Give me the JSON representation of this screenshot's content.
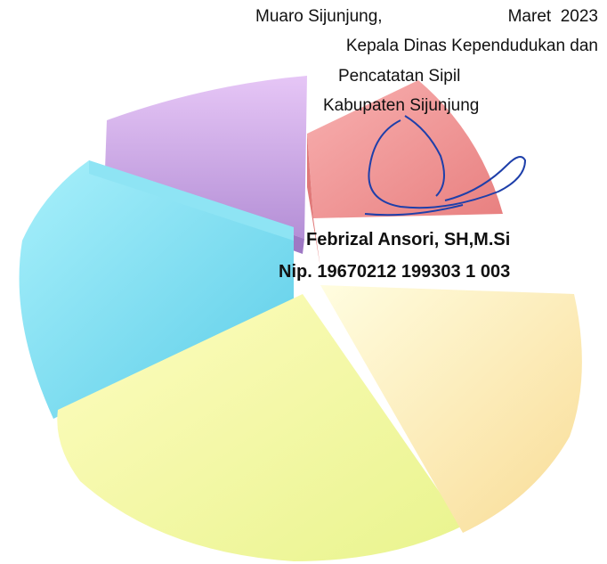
{
  "signature_block": {
    "place": "Muaro Sijunjung,",
    "date": "Maret  2023",
    "position_line1": "Kepala Dinas Kependudukan dan",
    "position_line2": "Pencatatan Sipil",
    "position_line3": "Kabupaten Sijunjung",
    "name": "Febrizal Ansori, SH,M.Si",
    "nip": "Nip. 19670212 199303 1 003"
  }
}
